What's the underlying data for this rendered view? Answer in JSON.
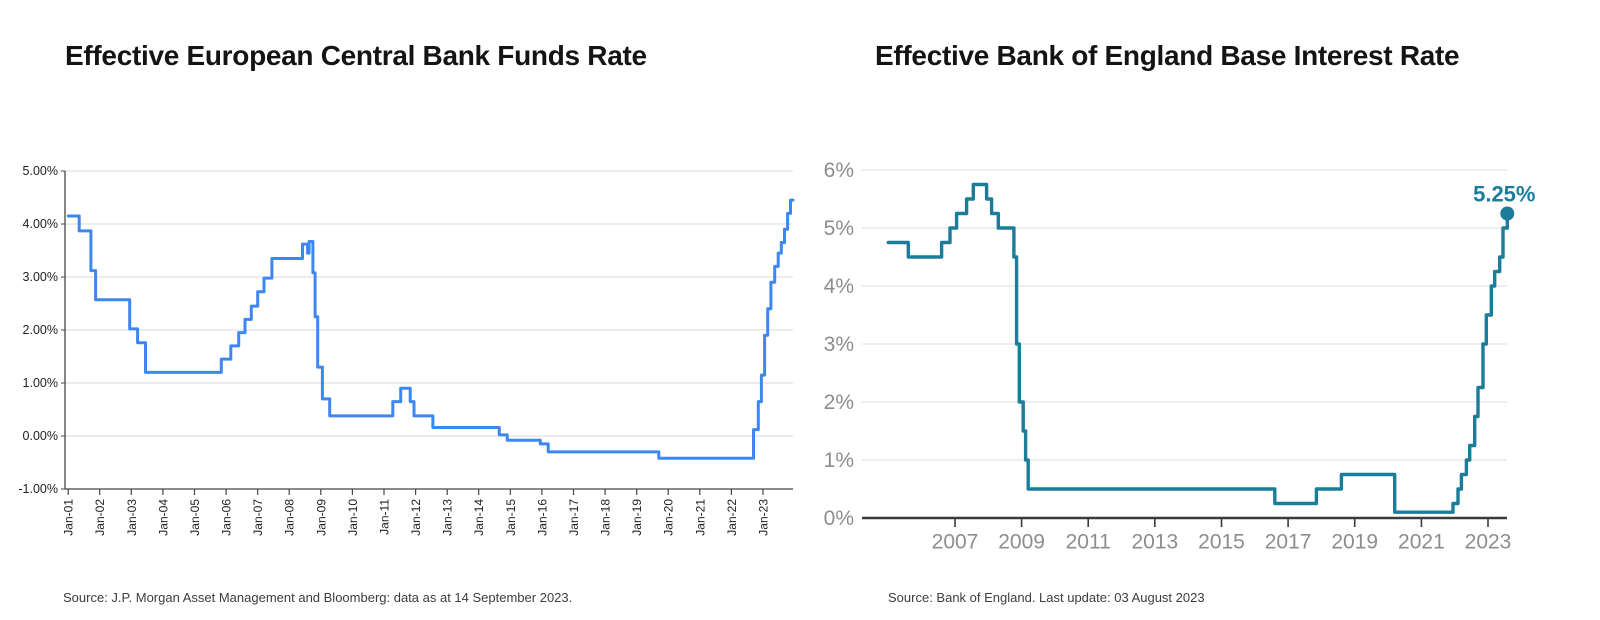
{
  "chart_data": [
    {
      "type": "line",
      "line_style": "step-after",
      "title": "Effective European Central Bank Funds Rate",
      "source": "Source: J.P. Morgan Asset Management and Bloomberg: data as at 14 September 2023.",
      "color": "#3e86f0",
      "xlim": [
        2000.9,
        2023.95
      ],
      "ylim": [
        -1,
        5
      ],
      "baseline": -1,
      "grid": true,
      "legend": "none",
      "y_ticks": [
        {
          "v": 5,
          "label": "5.00%"
        },
        {
          "v": 4,
          "label": "4.00%"
        },
        {
          "v": 3,
          "label": "3.00%"
        },
        {
          "v": 2,
          "label": "2.00%"
        },
        {
          "v": 1,
          "label": "1.00%"
        },
        {
          "v": 0,
          "label": "0.00%"
        },
        {
          "v": -1,
          "label": "-1.00%"
        }
      ],
      "x_ticks": [
        {
          "v": 2001,
          "label": "Jan-01"
        },
        {
          "v": 2002,
          "label": "Jan-02"
        },
        {
          "v": 2003,
          "label": "Jan-03"
        },
        {
          "v": 2004,
          "label": "Jan-04"
        },
        {
          "v": 2005,
          "label": "Jan-05"
        },
        {
          "v": 2006,
          "label": "Jan-06"
        },
        {
          "v": 2007,
          "label": "Jan-07"
        },
        {
          "v": 2008,
          "label": "Jan-08"
        },
        {
          "v": 2009,
          "label": "Jan-09"
        },
        {
          "v": 2010,
          "label": "Jan-10"
        },
        {
          "v": 2011,
          "label": "Jan-11"
        },
        {
          "v": 2012,
          "label": "Jan-12"
        },
        {
          "v": 2013,
          "label": "Jan-13"
        },
        {
          "v": 2014,
          "label": "Jan-14"
        },
        {
          "v": 2015,
          "label": "Jan-15"
        },
        {
          "v": 2016,
          "label": "Jan-16"
        },
        {
          "v": 2017,
          "label": "Jan-17"
        },
        {
          "v": 2018,
          "label": "Jan-18"
        },
        {
          "v": 2019,
          "label": "Jan-19"
        },
        {
          "v": 2020,
          "label": "Jan-20"
        },
        {
          "v": 2021,
          "label": "Jan-21"
        },
        {
          "v": 2022,
          "label": "Jan-22"
        },
        {
          "v": 2023,
          "label": "Jan-23"
        }
      ],
      "points": [
        [
          2001.0,
          4.15
        ],
        [
          2001.35,
          3.87
        ],
        [
          2001.72,
          3.12
        ],
        [
          2001.87,
          2.57
        ],
        [
          2002.95,
          2.02
        ],
        [
          2003.2,
          1.76
        ],
        [
          2003.45,
          1.2
        ],
        [
          2005.85,
          1.45
        ],
        [
          2006.15,
          1.7
        ],
        [
          2006.4,
          1.95
        ],
        [
          2006.6,
          2.2
        ],
        [
          2006.8,
          2.45
        ],
        [
          2007.0,
          2.72
        ],
        [
          2007.2,
          2.98
        ],
        [
          2007.45,
          3.35
        ],
        [
          2008.42,
          3.62
        ],
        [
          2008.58,
          3.45
        ],
        [
          2008.63,
          3.67
        ],
        [
          2008.75,
          3.08
        ],
        [
          2008.82,
          2.25
        ],
        [
          2008.9,
          1.3
        ],
        [
          2009.05,
          0.7
        ],
        [
          2009.28,
          0.38
        ],
        [
          2011.28,
          0.65
        ],
        [
          2011.53,
          0.9
        ],
        [
          2011.83,
          0.65
        ],
        [
          2011.95,
          0.38
        ],
        [
          2012.55,
          0.16
        ],
        [
          2014.65,
          0.02
        ],
        [
          2014.9,
          -0.08
        ],
        [
          2015.95,
          -0.15
        ],
        [
          2016.2,
          -0.3
        ],
        [
          2019.7,
          -0.42
        ],
        [
          2022.7,
          0.12
        ],
        [
          2022.85,
          0.65
        ],
        [
          2022.95,
          1.15
        ],
        [
          2023.05,
          1.9
        ],
        [
          2023.15,
          2.4
        ],
        [
          2023.25,
          2.9
        ],
        [
          2023.37,
          3.2
        ],
        [
          2023.48,
          3.45
        ],
        [
          2023.58,
          3.65
        ],
        [
          2023.68,
          3.9
        ],
        [
          2023.78,
          4.2
        ],
        [
          2023.87,
          4.45
        ],
        [
          2023.95,
          4.45
        ]
      ]
    },
    {
      "type": "line",
      "line_style": "step-after",
      "title": "Effective Bank of England Base Interest Rate",
      "source": "Source: Bank of England. Last update: 03 August 2023",
      "color": "#1c7d9b",
      "xlim": [
        2004.21,
        2023.57
      ],
      "ylim": [
        0,
        6
      ],
      "baseline": 0,
      "grid": true,
      "legend": "none",
      "annotation": {
        "text": "5.25%",
        "x": 2023.58,
        "y": 5.25
      },
      "end_dot": true,
      "y_ticks": [
        {
          "v": 6,
          "label": "6%"
        },
        {
          "v": 5,
          "label": "5%"
        },
        {
          "v": 4,
          "label": "4%"
        },
        {
          "v": 3,
          "label": "3%"
        },
        {
          "v": 2,
          "label": "2%"
        },
        {
          "v": 1,
          "label": "1%"
        },
        {
          "v": 0,
          "label": "0%"
        }
      ],
      "x_ticks": [
        {
          "v": 2007,
          "label": "2007"
        },
        {
          "v": 2009,
          "label": "2009"
        },
        {
          "v": 2011,
          "label": "2011"
        },
        {
          "v": 2013,
          "label": "2013"
        },
        {
          "v": 2015,
          "label": "2015"
        },
        {
          "v": 2017,
          "label": "2017"
        },
        {
          "v": 2019,
          "label": "2019"
        },
        {
          "v": 2021,
          "label": "2021"
        },
        {
          "v": 2023,
          "label": "2023"
        }
      ],
      "points": [
        [
          2005.0,
          4.75
        ],
        [
          2005.6,
          4.5
        ],
        [
          2006.6,
          4.75
        ],
        [
          2006.85,
          5.0
        ],
        [
          2007.05,
          5.25
        ],
        [
          2007.35,
          5.5
        ],
        [
          2007.55,
          5.75
        ],
        [
          2007.95,
          5.5
        ],
        [
          2008.1,
          5.25
        ],
        [
          2008.3,
          5.0
        ],
        [
          2008.77,
          4.5
        ],
        [
          2008.85,
          3.0
        ],
        [
          2008.93,
          2.0
        ],
        [
          2009.05,
          1.5
        ],
        [
          2009.12,
          1.0
        ],
        [
          2009.2,
          0.5
        ],
        [
          2016.6,
          0.25
        ],
        [
          2017.85,
          0.5
        ],
        [
          2018.6,
          0.75
        ],
        [
          2020.2,
          0.1
        ],
        [
          2021.95,
          0.25
        ],
        [
          2022.1,
          0.5
        ],
        [
          2022.2,
          0.75
        ],
        [
          2022.35,
          1.0
        ],
        [
          2022.45,
          1.25
        ],
        [
          2022.6,
          1.75
        ],
        [
          2022.7,
          2.25
        ],
        [
          2022.85,
          3.0
        ],
        [
          2022.95,
          3.5
        ],
        [
          2023.1,
          4.0
        ],
        [
          2023.2,
          4.25
        ],
        [
          2023.35,
          4.5
        ],
        [
          2023.45,
          5.0
        ],
        [
          2023.58,
          5.25
        ]
      ]
    }
  ]
}
